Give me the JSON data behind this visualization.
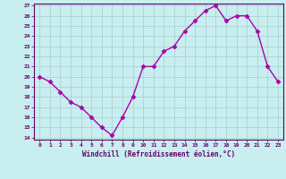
{
  "x": [
    0,
    1,
    2,
    3,
    4,
    5,
    6,
    7,
    8,
    9,
    10,
    11,
    12,
    13,
    14,
    15,
    16,
    17,
    18,
    19,
    20,
    21,
    22,
    23
  ],
  "y": [
    20,
    19.5,
    18.5,
    17.5,
    17,
    16,
    15,
    14.2,
    16,
    18,
    21,
    21,
    22.5,
    23,
    24.5,
    25.5,
    26.5,
    27,
    25.5,
    26,
    26,
    24.5,
    21,
    19.5
  ],
  "xlabel": "Windchill (Refroidissement éolien,°C)",
  "ylim": [
    14,
    27
  ],
  "xlim": [
    -0.5,
    23.5
  ],
  "yticks": [
    14,
    15,
    16,
    17,
    18,
    19,
    20,
    21,
    22,
    23,
    24,
    25,
    26,
    27
  ],
  "xticks": [
    0,
    1,
    2,
    3,
    4,
    5,
    6,
    7,
    8,
    9,
    10,
    11,
    12,
    13,
    14,
    15,
    16,
    17,
    18,
    19,
    20,
    21,
    22,
    23
  ],
  "line_color": "#aa00aa",
  "marker": "D",
  "marker_size": 2.5,
  "bg_color": "#c8eef0",
  "grid_color": "#aacccc",
  "label_color": "#660066",
  "tick_color": "#660066"
}
